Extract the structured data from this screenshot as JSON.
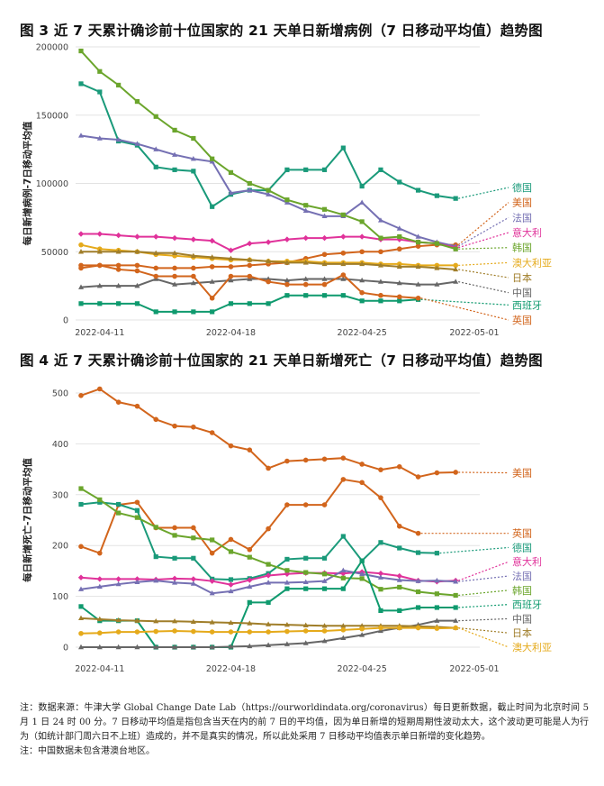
{
  "notes": {
    "line1": "注：数据来源：牛津大学 Global Change Date Lab（https://ourworldindata.org/coronavirus）每日更新数据，截止时间为北京时间 5 月 1 日 24 时 00 分。7 日移动平均值是指包含当天在内的前 7 日的平均值，因为单日新增的短期周期性波动太大，这个波动更可能是人为行为（如统计部门周六日不上班）造成的，并不是真实的情况，所以此处采用 7 日移动平均值表示单日新增的变化趋势。",
    "line2": "注：中国数据未包含港澳台地区。"
  },
  "chart_data": [
    {
      "type": "line",
      "title": "图 3  近 7 天累计确诊前十位国家的 21 天单日新增病例（7 日移动平均值）趋势图",
      "xlabel": "",
      "ylabel": "每日新增病例-7日移动平均值",
      "ylim": [
        0,
        200000
      ],
      "yticks": [
        0,
        50000,
        100000,
        150000,
        200000
      ],
      "ytick_labels": [
        "0",
        "50000",
        "100000",
        "150000",
        "200000"
      ],
      "grid": true,
      "legend": "right, end-of-line labels with dotted leaders",
      "x": [
        "2022-04-10",
        "2022-04-11",
        "2022-04-12",
        "2022-04-13",
        "2022-04-14",
        "2022-04-15",
        "2022-04-16",
        "2022-04-17",
        "2022-04-18",
        "2022-04-19",
        "2022-04-20",
        "2022-04-21",
        "2022-04-22",
        "2022-04-23",
        "2022-04-24",
        "2022-04-25",
        "2022-04-26",
        "2022-04-27",
        "2022-04-28",
        "2022-04-29",
        "2022-04-30",
        "2022-05-01"
      ],
      "xtick_labels": [
        "2022-04-11",
        "2022-04-18",
        "2022-04-25",
        "2022-05-01"
      ],
      "xtick_dates": [
        "2022-04-11",
        "2022-04-18",
        "2022-04-25",
        "2022-05-01"
      ],
      "series": [
        {
          "name": "德国",
          "color": "#1a9a7a",
          "marker": "square",
          "label_y": 97000,
          "values": [
            173000,
            167000,
            131000,
            128000,
            112000,
            110000,
            109000,
            83000,
            92000,
            95000,
            95000,
            110000,
            110000,
            110000,
            126000,
            98000,
            110000,
            101000,
            95000,
            91000,
            89000,
            null
          ]
        },
        {
          "name": "美国",
          "color": "#d2651c",
          "marker": "circle",
          "label_y": 86000,
          "values": [
            40000,
            40000,
            40000,
            40000,
            38000,
            38000,
            38000,
            39000,
            39000,
            40000,
            41000,
            42000,
            45000,
            48000,
            49000,
            50000,
            50000,
            52000,
            54000,
            55000,
            55000,
            null
          ]
        },
        {
          "name": "法国",
          "color": "#7570b3",
          "marker": "triangle",
          "label_y": 75000,
          "values": [
            135000,
            133000,
            132000,
            129000,
            125000,
            121000,
            118000,
            116000,
            93000,
            95000,
            92000,
            86000,
            80000,
            76000,
            76000,
            86000,
            73000,
            67000,
            61000,
            57000,
            54000,
            null
          ]
        },
        {
          "name": "意大利",
          "color": "#e0329a",
          "marker": "diamond",
          "label_y": 64000,
          "values": [
            63000,
            63000,
            62000,
            61000,
            61000,
            60000,
            59000,
            58000,
            51000,
            56000,
            57000,
            59000,
            60000,
            60000,
            61000,
            61000,
            59000,
            59000,
            57000,
            56000,
            53000,
            null
          ]
        },
        {
          "name": "韩国",
          "color": "#6ba52c",
          "marker": "square",
          "label_y": 53000,
          "values": [
            197000,
            182000,
            172000,
            160000,
            149000,
            139000,
            133000,
            118000,
            108000,
            100000,
            95000,
            88000,
            84000,
            81000,
            77000,
            72000,
            60000,
            61000,
            57000,
            56000,
            52000,
            null
          ]
        },
        {
          "name": "澳大利亚",
          "color": "#e5aa1b",
          "marker": "circle",
          "label_y": 42000,
          "values": [
            55000,
            52000,
            51000,
            50000,
            48000,
            47000,
            46000,
            45000,
            44000,
            44000,
            43000,
            43000,
            43000,
            42000,
            42000,
            42000,
            41000,
            41000,
            40000,
            40000,
            40000,
            null
          ]
        },
        {
          "name": "日本",
          "color": "#a07e2a",
          "marker": "triangle",
          "label_y": 31000,
          "values": [
            50000,
            50000,
            50000,
            50000,
            49000,
            49000,
            47000,
            46000,
            45000,
            44000,
            43000,
            42000,
            42000,
            41000,
            41000,
            41000,
            40000,
            39000,
            39000,
            38000,
            37000,
            null
          ]
        },
        {
          "name": "中国",
          "color": "#666666",
          "marker": "triangle",
          "label_y": 20000,
          "values": [
            24000,
            25000,
            25000,
            25000,
            30000,
            26000,
            27000,
            28000,
            29000,
            30000,
            30000,
            29000,
            30000,
            30000,
            30000,
            29000,
            28000,
            27000,
            26000,
            26000,
            28000,
            null
          ]
        },
        {
          "name": "西班牙",
          "color": "#0f9a6e",
          "marker": "square",
          "label_y": 11000,
          "values": [
            12000,
            12000,
            12000,
            12000,
            6000,
            6000,
            6000,
            6000,
            12000,
            12000,
            12000,
            18000,
            18000,
            18000,
            18000,
            14000,
            14000,
            14000,
            15000,
            null,
            null,
            null
          ]
        },
        {
          "name": "英国",
          "color": "#d2651c",
          "marker": "circle",
          "label_y": 0,
          "values": [
            38000,
            40000,
            37000,
            36000,
            32000,
            32000,
            32000,
            16000,
            32000,
            32000,
            28000,
            26000,
            26000,
            26000,
            33000,
            20000,
            18000,
            17000,
            16000,
            null,
            null,
            null
          ]
        }
      ]
    },
    {
      "type": "line",
      "title": "图 4  近 7 天累计确诊前十位国家的 21 天单日新增死亡（7 日移动平均值）趋势图",
      "xlabel": "",
      "ylabel": "每日新增死亡-7日移动平均值",
      "ylim": [
        0,
        500
      ],
      "yticks": [
        0,
        100,
        200,
        300,
        400,
        500
      ],
      "ytick_labels": [
        "0",
        "100",
        "200",
        "300",
        "400",
        "500"
      ],
      "grid": true,
      "legend": "right, end-of-line labels with dotted leaders",
      "x": [
        "2022-04-10",
        "2022-04-11",
        "2022-04-12",
        "2022-04-13",
        "2022-04-14",
        "2022-04-15",
        "2022-04-16",
        "2022-04-17",
        "2022-04-18",
        "2022-04-19",
        "2022-04-20",
        "2022-04-21",
        "2022-04-22",
        "2022-04-23",
        "2022-04-24",
        "2022-04-25",
        "2022-04-26",
        "2022-04-27",
        "2022-04-28",
        "2022-04-29",
        "2022-04-30",
        "2022-05-01"
      ],
      "xtick_labels": [
        "2022-04-11",
        "2022-04-18",
        "2022-04-25",
        "2022-05-01"
      ],
      "xtick_dates": [
        "2022-04-11",
        "2022-04-18",
        "2022-04-25",
        "2022-05-01"
      ],
      "series": [
        {
          "name": "美国",
          "color": "#d2651c",
          "marker": "circle",
          "label_y": 343,
          "values": [
            495,
            508,
            482,
            474,
            448,
            435,
            433,
            422,
            396,
            388,
            352,
            366,
            368,
            370,
            372,
            360,
            349,
            355,
            335,
            343,
            344,
            null
          ]
        },
        {
          "name": "英国",
          "color": "#d2651c",
          "marker": "circle",
          "label_y": 224,
          "values": [
            198,
            185,
            280,
            285,
            235,
            235,
            235,
            185,
            212,
            192,
            233,
            280,
            280,
            280,
            330,
            324,
            294,
            238,
            224,
            null,
            null,
            null
          ]
        },
        {
          "name": "德国",
          "color": "#1a9a7a",
          "marker": "square",
          "label_y": 196,
          "values": [
            281,
            285,
            281,
            269,
            178,
            175,
            175,
            134,
            133,
            135,
            145,
            173,
            175,
            175,
            218,
            170,
            206,
            195,
            186,
            185,
            null,
            null
          ]
        },
        {
          "name": "意大利",
          "color": "#e0329a",
          "marker": "diamond",
          "label_y": 168,
          "values": [
            137,
            134,
            134,
            134,
            133,
            135,
            134,
            130,
            123,
            132,
            141,
            144,
            146,
            146,
            145,
            148,
            145,
            140,
            131,
            129,
            131,
            null
          ]
        },
        {
          "name": "法国",
          "color": "#7570b3",
          "marker": "triangle",
          "label_y": 140,
          "values": [
            114,
            119,
            124,
            128,
            131,
            127,
            125,
            106,
            110,
            119,
            127,
            127,
            128,
            130,
            151,
            144,
            137,
            132,
            130,
            131,
            129,
            null
          ]
        },
        {
          "name": "韩国",
          "color": "#6ba52c",
          "marker": "square",
          "label_y": 112,
          "values": [
            312,
            290,
            264,
            255,
            236,
            220,
            215,
            211,
            188,
            177,
            163,
            151,
            147,
            144,
            136,
            135,
            114,
            118,
            109,
            105,
            102,
            null
          ]
        },
        {
          "name": "西班牙",
          "color": "#0f9a6e",
          "marker": "square",
          "label_y": 84,
          "values": [
            80,
            52,
            52,
            52,
            0,
            0,
            0,
            0,
            0,
            88,
            88,
            115,
            115,
            115,
            115,
            170,
            72,
            72,
            78,
            78,
            78,
            null
          ]
        },
        {
          "name": "中国",
          "color": "#666666",
          "marker": "triangle",
          "label_y": 56,
          "values": [
            0,
            0,
            0,
            0,
            0,
            0,
            0,
            0,
            1,
            2,
            4,
            6,
            8,
            12,
            18,
            24,
            32,
            38,
            44,
            52,
            52,
            null
          ]
        },
        {
          "name": "日本",
          "color": "#a07e2a",
          "marker": "triangle",
          "label_y": 28,
          "values": [
            57,
            55,
            53,
            52,
            51,
            51,
            50,
            49,
            48,
            47,
            45,
            44,
            43,
            42,
            42,
            42,
            42,
            42,
            41,
            40,
            38,
            null
          ]
        },
        {
          "name": "澳大利亚",
          "color": "#e5aa1b",
          "marker": "circle",
          "label_y": 0,
          "values": [
            27,
            28,
            30,
            30,
            31,
            32,
            31,
            30,
            30,
            30,
            30,
            31,
            32,
            32,
            34,
            36,
            38,
            38,
            38,
            37,
            38,
            null
          ]
        }
      ]
    }
  ]
}
